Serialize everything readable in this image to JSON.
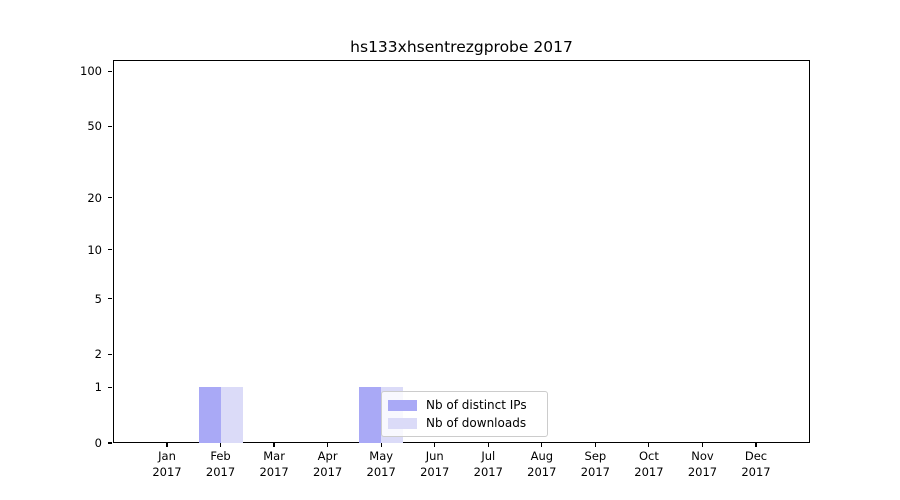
{
  "title": "hs133xhsentrezgprobe 2017",
  "chart_data": {
    "type": "bar",
    "title": "hs133xhsentrezgprobe 2017",
    "categories": [
      {
        "month": "Jan",
        "year": "2017"
      },
      {
        "month": "Feb",
        "year": "2017"
      },
      {
        "month": "Mar",
        "year": "2017"
      },
      {
        "month": "Apr",
        "year": "2017"
      },
      {
        "month": "May",
        "year": "2017"
      },
      {
        "month": "Jun",
        "year": "2017"
      },
      {
        "month": "Jul",
        "year": "2017"
      },
      {
        "month": "Aug",
        "year": "2017"
      },
      {
        "month": "Sep",
        "year": "2017"
      },
      {
        "month": "Oct",
        "year": "2017"
      },
      {
        "month": "Nov",
        "year": "2017"
      },
      {
        "month": "Dec",
        "year": "2017"
      }
    ],
    "series": [
      {
        "name": "Nb of distinct IPs",
        "color": "#a9a9f6",
        "values": [
          0,
          1,
          0,
          0,
          1,
          0,
          0,
          0,
          0,
          0,
          0,
          0
        ]
      },
      {
        "name": "Nb of downloads",
        "color": "#dbdbf8",
        "values": [
          0,
          1,
          0,
          0,
          1,
          0,
          0,
          0,
          0,
          0,
          0,
          0
        ]
      }
    ],
    "xlabel": "",
    "ylabel": "",
    "yscale": "log1p",
    "ylim": [
      0,
      115
    ],
    "yticks": [
      0,
      1,
      2,
      5,
      10,
      20,
      50,
      100
    ],
    "minor_yticks": [
      3,
      4,
      6,
      7,
      8,
      9,
      30,
      40,
      60,
      70,
      80,
      90
    ],
    "grid": "horizontal",
    "legend_position": "inside-bottom-center",
    "colors": {
      "major_grid": "#d2d2d2",
      "minor_grid": "#ececec",
      "axis": "#000000",
      "background": "#ffffff"
    }
  }
}
